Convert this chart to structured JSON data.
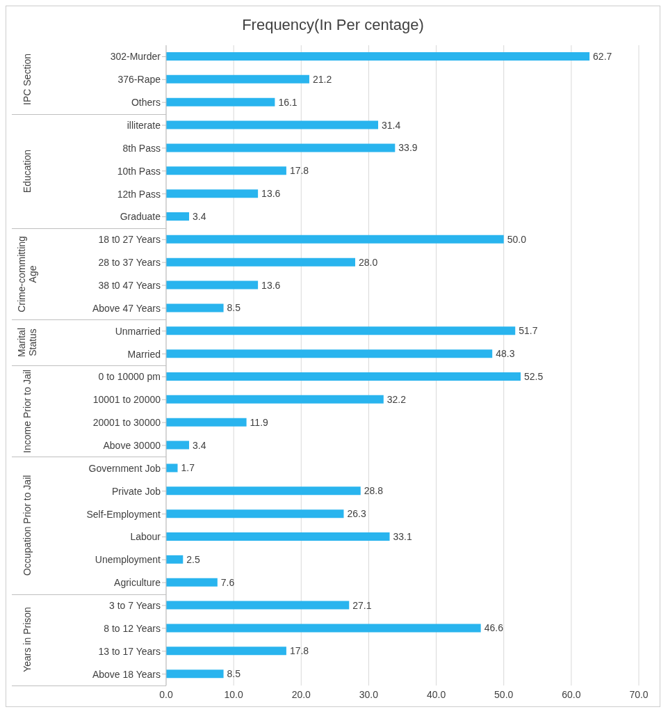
{
  "chart_data": {
    "type": "bar",
    "orientation": "horizontal",
    "title": "Frequency(In Per centage)",
    "categories": [
      "302-Murder",
      "376-Rape",
      "Others",
      "illiterate",
      "8th Pass",
      "10th Pass",
      "12th Pass",
      "Graduate",
      "18 t0 27 Years",
      "28 to 37 Years",
      "38 t0 47 Years",
      "Above 47 Years",
      "Unmarried",
      "Married",
      "0 to 10000 pm",
      "10001 to 20000",
      "20001 to 30000",
      "Above 30000",
      "Government Job",
      "Private Job",
      "Self-Employment",
      "Labour",
      "Unemployment",
      "Agriculture",
      "3 to 7 Years",
      "8 to 12 Years",
      "13 to 17 Years",
      "Above 18 Years"
    ],
    "values": [
      62.7,
      21.2,
      16.1,
      31.4,
      33.9,
      17.8,
      13.6,
      3.4,
      50.0,
      28.0,
      13.6,
      8.5,
      51.7,
      48.3,
      52.5,
      32.2,
      11.9,
      3.4,
      1.7,
      28.8,
      26.3,
      33.1,
      2.5,
      7.6,
      27.1,
      46.6,
      17.8,
      8.5
    ],
    "value_labels": [
      "62.7",
      "21.2",
      "16.1",
      "31.4",
      "33.9",
      "17.8",
      "13.6",
      "3.4",
      "50.0",
      "28.0",
      "13.6",
      "8.5",
      "51.7",
      "48.3",
      "52.5",
      "32.2",
      "11.9",
      "3.4",
      "1.7",
      "28.8",
      "26.3",
      "33.1",
      "2.5",
      "7.6",
      "27.1",
      "46.6",
      "17.8",
      "8.5"
    ],
    "color": "#29b4ee",
    "xlim": [
      0,
      70
    ],
    "xticks": [
      {
        "value": 0,
        "label": "0.0"
      },
      {
        "value": 10,
        "label": "10.0"
      },
      {
        "value": 20,
        "label": "20.0"
      },
      {
        "value": 30,
        "label": "30.0"
      },
      {
        "value": 40,
        "label": "40.0"
      },
      {
        "value": 50,
        "label": "50.0"
      },
      {
        "value": 60,
        "label": "60.0"
      },
      {
        "value": 70,
        "label": "70.0"
      }
    ],
    "grid": "x",
    "annotations": [
      "IPC Section",
      "Education",
      "Crime-committing Age",
      "Marital Status",
      "Income Prior to Jail",
      "Occupation Prior to Jail",
      "Years in Prison"
    ]
  }
}
